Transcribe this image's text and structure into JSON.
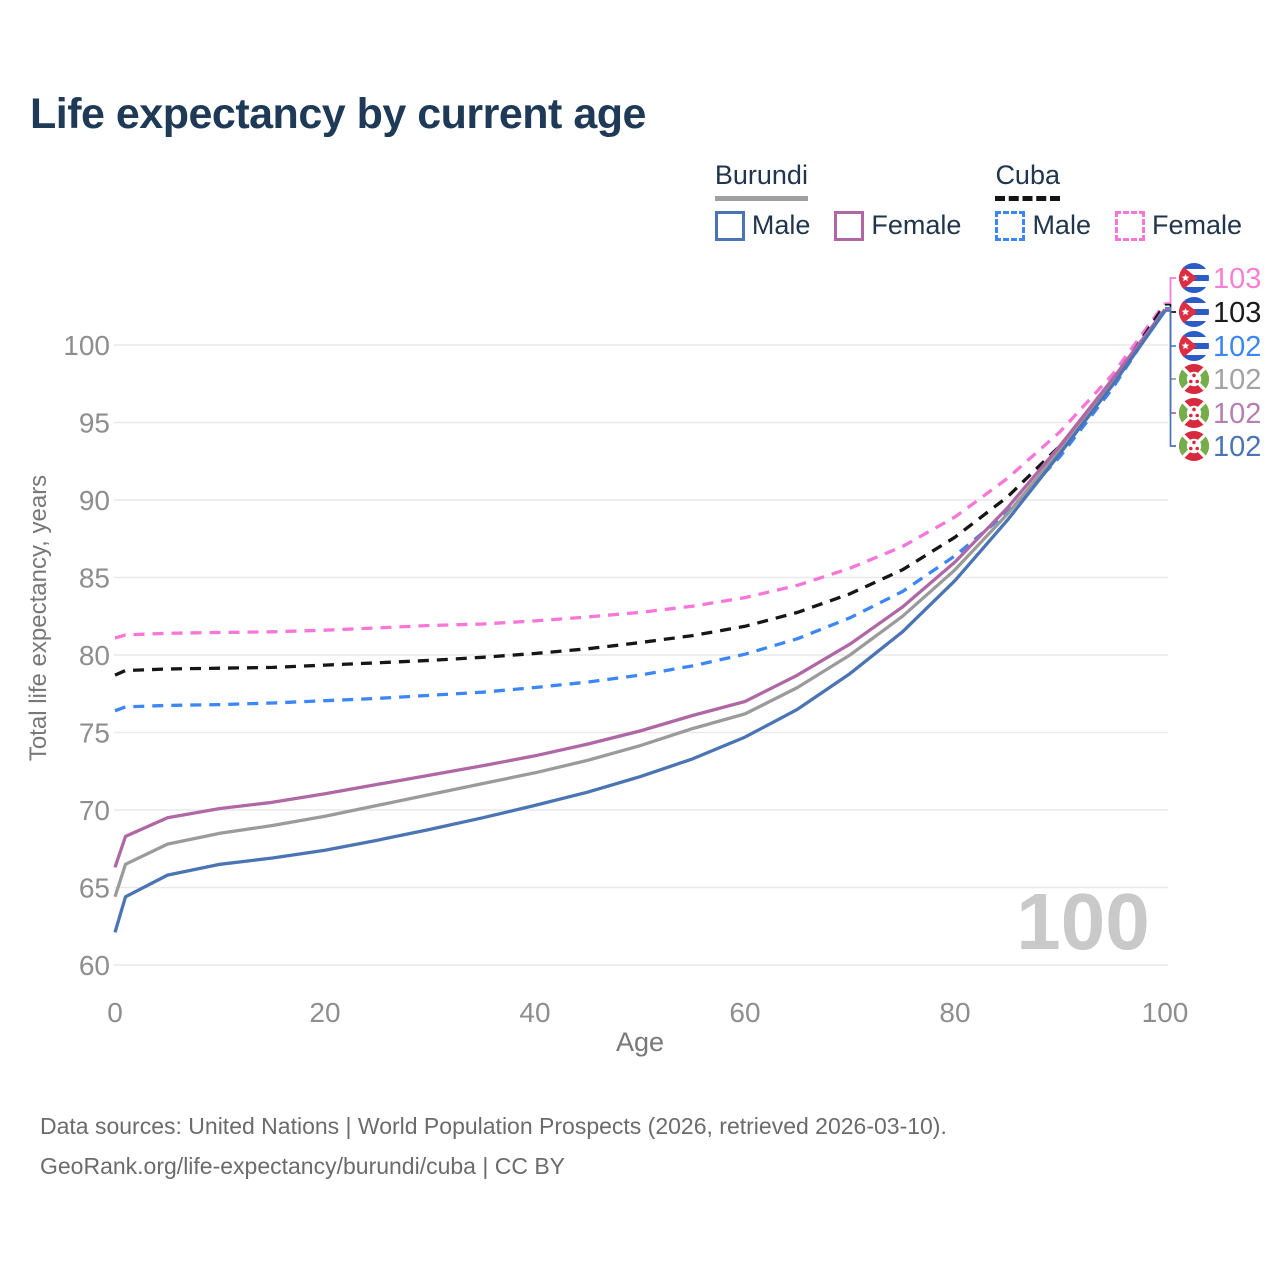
{
  "title": "Life expectancy by current age",
  "watermark": "100",
  "legend": {
    "groups": [
      {
        "country": "Burundi",
        "line_style": "solid",
        "underline_color": "#a0a0a0",
        "items": [
          {
            "label": "Male",
            "color": "#4b74b4"
          },
          {
            "label": "Female",
            "color": "#b068a4"
          }
        ]
      },
      {
        "country": "Cuba",
        "line_style": "dashed",
        "underline_color": "#141414",
        "items": [
          {
            "label": "Male",
            "color": "#3d87f5"
          },
          {
            "label": "Female",
            "color": "#f876d7"
          }
        ]
      }
    ]
  },
  "footer": {
    "line1": "Data sources: United Nations | World Population Prospects (2026, retrieved 2026-03-10).",
    "line2": "GeoRank.org/life-expectancy/burundi/cuba | CC BY"
  },
  "chart_data": {
    "type": "line",
    "title": "Life expectancy by current age",
    "xlabel": "Age",
    "ylabel": "Total life expectancy, years",
    "xlim": [
      0,
      100
    ],
    "ylim": [
      60,
      103.5
    ],
    "xticks": [
      0,
      20,
      40,
      60,
      80,
      100
    ],
    "yticks": [
      60,
      65,
      70,
      75,
      80,
      85,
      90,
      95,
      100
    ],
    "grid": true,
    "legend_position": "top-right",
    "x": [
      0,
      1,
      5,
      10,
      15,
      20,
      25,
      30,
      35,
      40,
      45,
      50,
      55,
      60,
      65,
      70,
      75,
      80,
      85,
      90,
      95,
      100
    ],
    "series": [
      {
        "name": "Cuba Female",
        "country": "Cuba",
        "sex": "Female",
        "flag": "cuba",
        "dash": true,
        "color": "#f876d7",
        "label_color": "#f97fd3",
        "end_label": "103",
        "values": [
          81.1,
          81.3,
          81.4,
          81.45,
          81.5,
          81.6,
          81.75,
          81.9,
          82.0,
          82.2,
          82.45,
          82.75,
          83.15,
          83.7,
          84.5,
          85.6,
          87.0,
          88.9,
          91.4,
          94.4,
          98.1,
          102.7
        ]
      },
      {
        "name": "Cuba Total",
        "country": "Cuba",
        "sex": "Both",
        "flag": "cuba",
        "dash": true,
        "color": "#161616",
        "label_color": "#1a1a1a",
        "end_label": "103",
        "values": [
          78.7,
          79.0,
          79.1,
          79.15,
          79.2,
          79.35,
          79.5,
          79.65,
          79.85,
          80.1,
          80.4,
          80.8,
          81.25,
          81.85,
          82.75,
          83.95,
          85.5,
          87.6,
          90.2,
          93.5,
          97.6,
          102.6
        ]
      },
      {
        "name": "Cuba Male",
        "country": "Cuba",
        "sex": "Male",
        "flag": "cuba",
        "dash": true,
        "color": "#3d87f5",
        "label_color": "#3d87f5",
        "end_label": "102",
        "values": [
          76.4,
          76.65,
          76.75,
          76.8,
          76.9,
          77.05,
          77.2,
          77.4,
          77.6,
          77.9,
          78.25,
          78.7,
          79.3,
          80.05,
          81.05,
          82.4,
          84.1,
          86.4,
          89.2,
          92.8,
          97.2,
          102.4
        ]
      },
      {
        "name": "Burundi Total",
        "country": "Burundi",
        "sex": "Both",
        "flag": "burundi",
        "dash": false,
        "color": "#9b9b9b",
        "label_color": "#a3a3a3",
        "end_label": "102",
        "values": [
          64.4,
          66.5,
          67.8,
          68.5,
          69.0,
          69.6,
          70.3,
          71.0,
          71.7,
          72.4,
          73.2,
          74.15,
          75.25,
          76.2,
          77.9,
          80.0,
          82.5,
          85.5,
          89.1,
          93.2,
          97.6,
          102.2
        ]
      },
      {
        "name": "Burundi Female",
        "country": "Burundi",
        "sex": "Female",
        "flag": "burundi",
        "dash": false,
        "color": "#b068a4",
        "label_color": "#b77fb0",
        "end_label": "102",
        "values": [
          66.3,
          68.3,
          69.5,
          70.1,
          70.5,
          71.05,
          71.65,
          72.25,
          72.85,
          73.5,
          74.25,
          75.1,
          76.1,
          77.0,
          78.7,
          80.7,
          83.1,
          86.0,
          89.5,
          93.5,
          97.8,
          102.3
        ]
      },
      {
        "name": "Burundi Male",
        "country": "Burundi",
        "sex": "Male",
        "flag": "burundi",
        "dash": false,
        "color": "#4b74b4",
        "label_color": "#4b74b4",
        "end_label": "102",
        "values": [
          62.1,
          64.4,
          65.8,
          66.5,
          66.9,
          67.4,
          68.05,
          68.75,
          69.5,
          70.3,
          71.15,
          72.15,
          73.3,
          74.7,
          76.5,
          78.8,
          81.5,
          84.8,
          88.7,
          93.0,
          97.4,
          102.2
        ]
      }
    ],
    "colors": {
      "gridline": "#e9e9e9",
      "tick_text": "#8e8e8e",
      "axis_title_text": "#787878",
      "watermark": "#c9c9c9",
      "flag_cuba_blue": "#2a5bc7",
      "flag_cuba_red": "#dd2e44",
      "flag_burundi_red": "#d62b3e",
      "flag_burundi_green": "#74ae4b"
    }
  }
}
